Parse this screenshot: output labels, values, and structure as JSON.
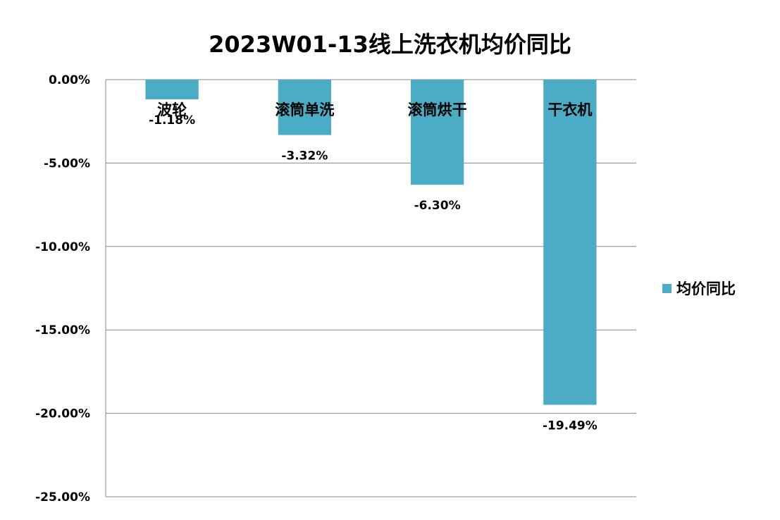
{
  "chart_data": {
    "type": "bar",
    "title": "2023W01-13线上洗衣机均价同比",
    "categories": [
      "波轮",
      "滚筒单洗",
      "滚筒烘干",
      "干衣机"
    ],
    "series": [
      {
        "name": "均价同比",
        "values": [
          -1.18,
          -3.32,
          -6.3,
          -19.49
        ],
        "data_labels": [
          "-1.18%",
          "-3.32%",
          "-6.30%",
          "-19.49%"
        ],
        "color": "#4BACC6"
      }
    ],
    "ylim": [
      -25,
      0
    ],
    "yticks": [
      0,
      -5,
      -10,
      -15,
      -20,
      -25
    ],
    "ytick_labels": [
      "0.00%",
      "-5.00%",
      "-10.00%",
      "-15.00%",
      "-20.00%",
      "-25.00%"
    ],
    "xlabel": "",
    "ylabel": "",
    "grid": true,
    "legend_position": "right"
  }
}
